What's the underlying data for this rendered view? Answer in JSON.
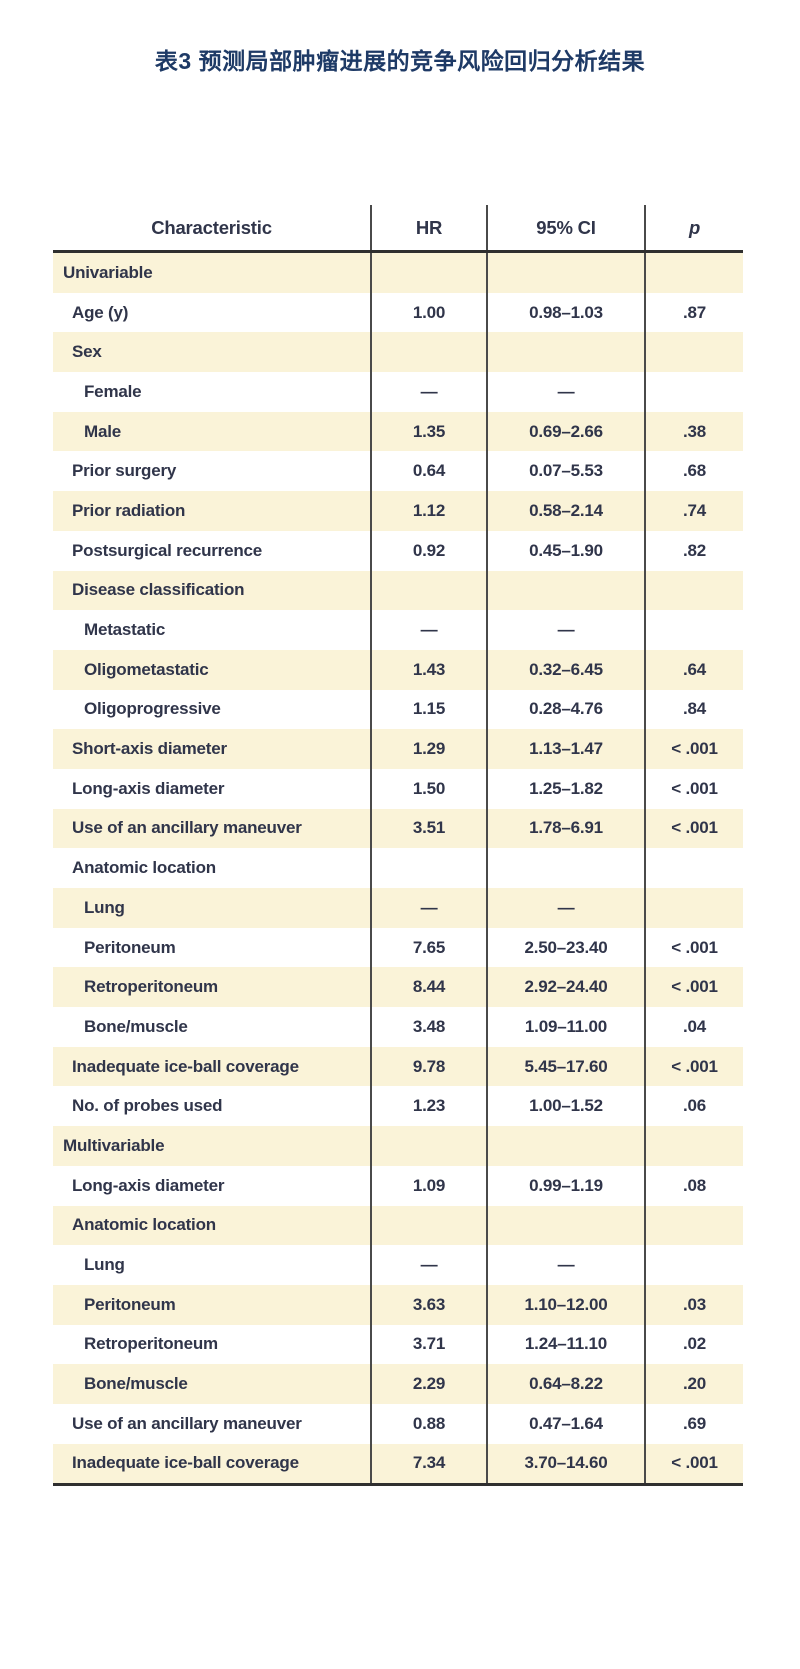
{
  "title": "表3 预测局部肿瘤进展的竞争风险回归分析结果",
  "colors": {
    "title_color": "#1e3a66",
    "text_color": "#30354a",
    "row_shade": "#faf3d8",
    "rule_color": "#2f2f2f",
    "grid_line": "#4a4a4a"
  },
  "table": {
    "columns": [
      "Characteristic",
      "HR",
      "95% CI",
      "p"
    ],
    "rows": [
      {
        "label": "Univariable",
        "indent": 0,
        "hr": "",
        "ci": "",
        "p": ""
      },
      {
        "label": "Age (y)",
        "indent": 1,
        "hr": "1.00",
        "ci": "0.98–1.03",
        "p": ".87"
      },
      {
        "label": "Sex",
        "indent": 1,
        "hr": "",
        "ci": "",
        "p": ""
      },
      {
        "label": "Female",
        "indent": 2,
        "hr": "—",
        "ci": "—",
        "p": ""
      },
      {
        "label": "Male",
        "indent": 2,
        "hr": "1.35",
        "ci": "0.69–2.66",
        "p": ".38"
      },
      {
        "label": "Prior surgery",
        "indent": 1,
        "hr": "0.64",
        "ci": "0.07–5.53",
        "p": ".68"
      },
      {
        "label": "Prior radiation",
        "indent": 1,
        "hr": "1.12",
        "ci": "0.58–2.14",
        "p": ".74"
      },
      {
        "label": "Postsurgical recurrence",
        "indent": 1,
        "hr": "0.92",
        "ci": "0.45–1.90",
        "p": ".82"
      },
      {
        "label": "Disease classification",
        "indent": 1,
        "hr": "",
        "ci": "",
        "p": ""
      },
      {
        "label": "Metastatic",
        "indent": 2,
        "hr": "—",
        "ci": "—",
        "p": ""
      },
      {
        "label": "Oligometastatic",
        "indent": 2,
        "hr": "1.43",
        "ci": "0.32–6.45",
        "p": ".64"
      },
      {
        "label": "Oligoprogressive",
        "indent": 2,
        "hr": "1.15",
        "ci": "0.28–4.76",
        "p": ".84"
      },
      {
        "label": "Short-axis diameter",
        "indent": 1,
        "hr": "1.29",
        "ci": "1.13–1.47",
        "p": "< .001"
      },
      {
        "label": "Long-axis diameter",
        "indent": 1,
        "hr": "1.50",
        "ci": "1.25–1.82",
        "p": "< .001"
      },
      {
        "label": "Use of an ancillary maneuver",
        "indent": 1,
        "hr": "3.51",
        "ci": "1.78–6.91",
        "p": "< .001"
      },
      {
        "label": "Anatomic location",
        "indent": 1,
        "hr": "",
        "ci": "",
        "p": ""
      },
      {
        "label": "Lung",
        "indent": 2,
        "hr": "—",
        "ci": "—",
        "p": ""
      },
      {
        "label": "Peritoneum",
        "indent": 2,
        "hr": "7.65",
        "ci": "2.50–23.40",
        "p": "< .001"
      },
      {
        "label": "Retroperitoneum",
        "indent": 2,
        "hr": "8.44",
        "ci": "2.92–24.40",
        "p": "< .001"
      },
      {
        "label": "Bone/muscle",
        "indent": 2,
        "hr": "3.48",
        "ci": "1.09–11.00",
        "p": ".04"
      },
      {
        "label": "Inadequate ice-ball coverage",
        "indent": 1,
        "hr": "9.78",
        "ci": "5.45–17.60",
        "p": "< .001"
      },
      {
        "label": "No. of probes used",
        "indent": 1,
        "hr": "1.23",
        "ci": "1.00–1.52",
        "p": ".06"
      },
      {
        "label": "Multivariable",
        "indent": 0,
        "hr": "",
        "ci": "",
        "p": ""
      },
      {
        "label": "Long-axis diameter",
        "indent": 1,
        "hr": "1.09",
        "ci": "0.99–1.19",
        "p": ".08"
      },
      {
        "label": "Anatomic location",
        "indent": 1,
        "hr": "",
        "ci": "",
        "p": ""
      },
      {
        "label": "Lung",
        "indent": 2,
        "hr": "—",
        "ci": "—",
        "p": ""
      },
      {
        "label": "Peritoneum",
        "indent": 2,
        "hr": "3.63",
        "ci": "1.10–12.00",
        "p": ".03"
      },
      {
        "label": "Retroperitoneum",
        "indent": 2,
        "hr": "3.71",
        "ci": "1.24–11.10",
        "p": ".02"
      },
      {
        "label": "Bone/muscle",
        "indent": 2,
        "hr": "2.29",
        "ci": "0.64–8.22",
        "p": ".20"
      },
      {
        "label": "Use of an ancillary maneuver",
        "indent": 1,
        "hr": "0.88",
        "ci": "0.47–1.64",
        "p": ".69"
      },
      {
        "label": "Inadequate ice-ball coverage",
        "indent": 1,
        "hr": "7.34",
        "ci": "3.70–14.60",
        "p": "< .001"
      }
    ]
  }
}
